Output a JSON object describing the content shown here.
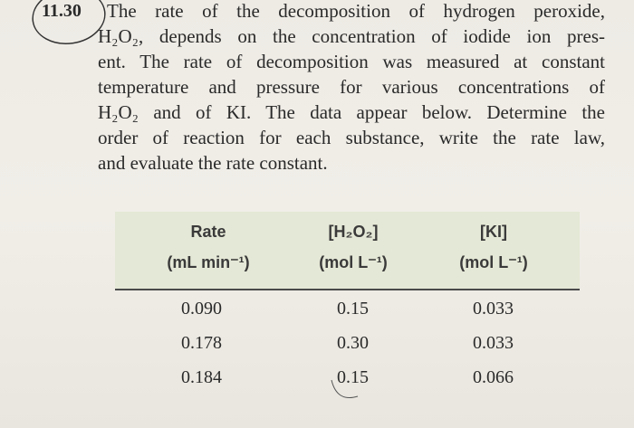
{
  "problem": {
    "number": "11.30",
    "lines": [
      "The rate of the decomposition of hydrogen peroxide,",
      "H₂O₂, depends on the concentration of iodide ion pres-",
      "ent. The rate of decomposition was measured at constant",
      "temperature and pressure for various concentrations of",
      "H₂O₂ and of KI. The data appear below. Determine the",
      "order of reaction for each substance, write the rate law,",
      "and evaluate the rate constant."
    ]
  },
  "table": {
    "header": [
      [
        "Rate",
        "(mL min⁻¹)"
      ],
      [
        "[H₂O₂]",
        "(mol L⁻¹)"
      ],
      [
        "[KI]",
        "(mol L⁻¹)"
      ]
    ],
    "rows": [
      [
        "0.090",
        "0.15",
        "0.033"
      ],
      [
        "0.178",
        "0.30",
        "0.033"
      ],
      [
        "0.184",
        "0.15",
        "0.066"
      ]
    ]
  }
}
